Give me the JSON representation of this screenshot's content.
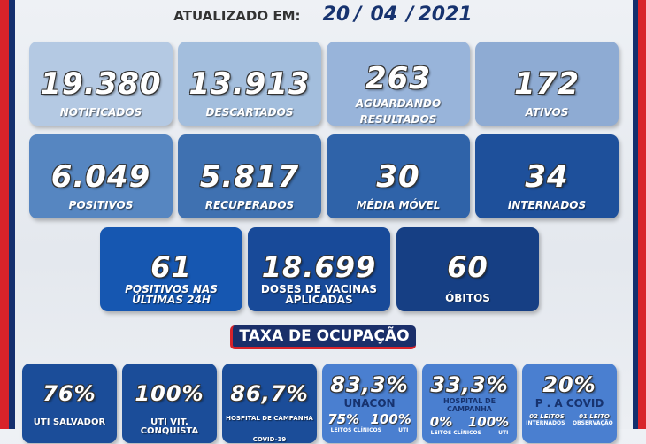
{
  "header": {
    "updated_label": "ATUALIZADO EM:",
    "day": "20",
    "month": "04",
    "year": "2021",
    "sep": "/"
  },
  "stats": [
    {
      "value": "19.380",
      "label": "NOTIFICADOS"
    },
    {
      "value": "13.913",
      "label": "DESCARTADOS"
    },
    {
      "value": "263",
      "label": "AGUARDANDO",
      "label2": "RESULTADOS"
    },
    {
      "value": "172",
      "label": "ATIVOS"
    },
    {
      "value": "6.049",
      "label": "POSITIVOS"
    },
    {
      "value": "5.817",
      "label": "RECUPERADOS"
    },
    {
      "value": "30",
      "label": "MÉDIA MÓVEL"
    },
    {
      "value": "34",
      "label": "INTERNADOS"
    },
    {
      "value": "61",
      "label": "POSITIVOS NAS",
      "label2": "ÚLTIMAS 24H"
    },
    {
      "value": "18.699",
      "label": "DOSES DE VACINAS",
      "label2": "APLICADAS"
    },
    {
      "value": "60",
      "label": "ÓBITOS"
    }
  ],
  "occupancy": {
    "title": "TAXA DE OCUPAÇÃO",
    "items": [
      {
        "value": "76%",
        "label": "UTI SALVADOR"
      },
      {
        "value": "100%",
        "label": "UTI VIT. CONQUISTA"
      },
      {
        "value": "86,7%",
        "label": "HOSPITAL DE CAMPANHA",
        "label2": "COVID-19"
      },
      {
        "value": "83,3%",
        "label": "UNACON",
        "a": "75%",
        "b": "100%",
        "a_label": "LEITOS CLÍNICOS",
        "b_label": "UTI"
      },
      {
        "value": "33,3%",
        "label": "HOSPITAL DE",
        "label2": "CAMPANHA",
        "a": "0%",
        "b": "100%",
        "a_label": "LEITOS CLÍNICOS",
        "b_label": "UTI"
      },
      {
        "value": "20%",
        "label": "P . A COVID",
        "a": "02 LEITOS",
        "b": "01 LEITO",
        "a_label": "INTERNADOS",
        "b_label": "OBSERVAÇÃO"
      }
    ]
  }
}
